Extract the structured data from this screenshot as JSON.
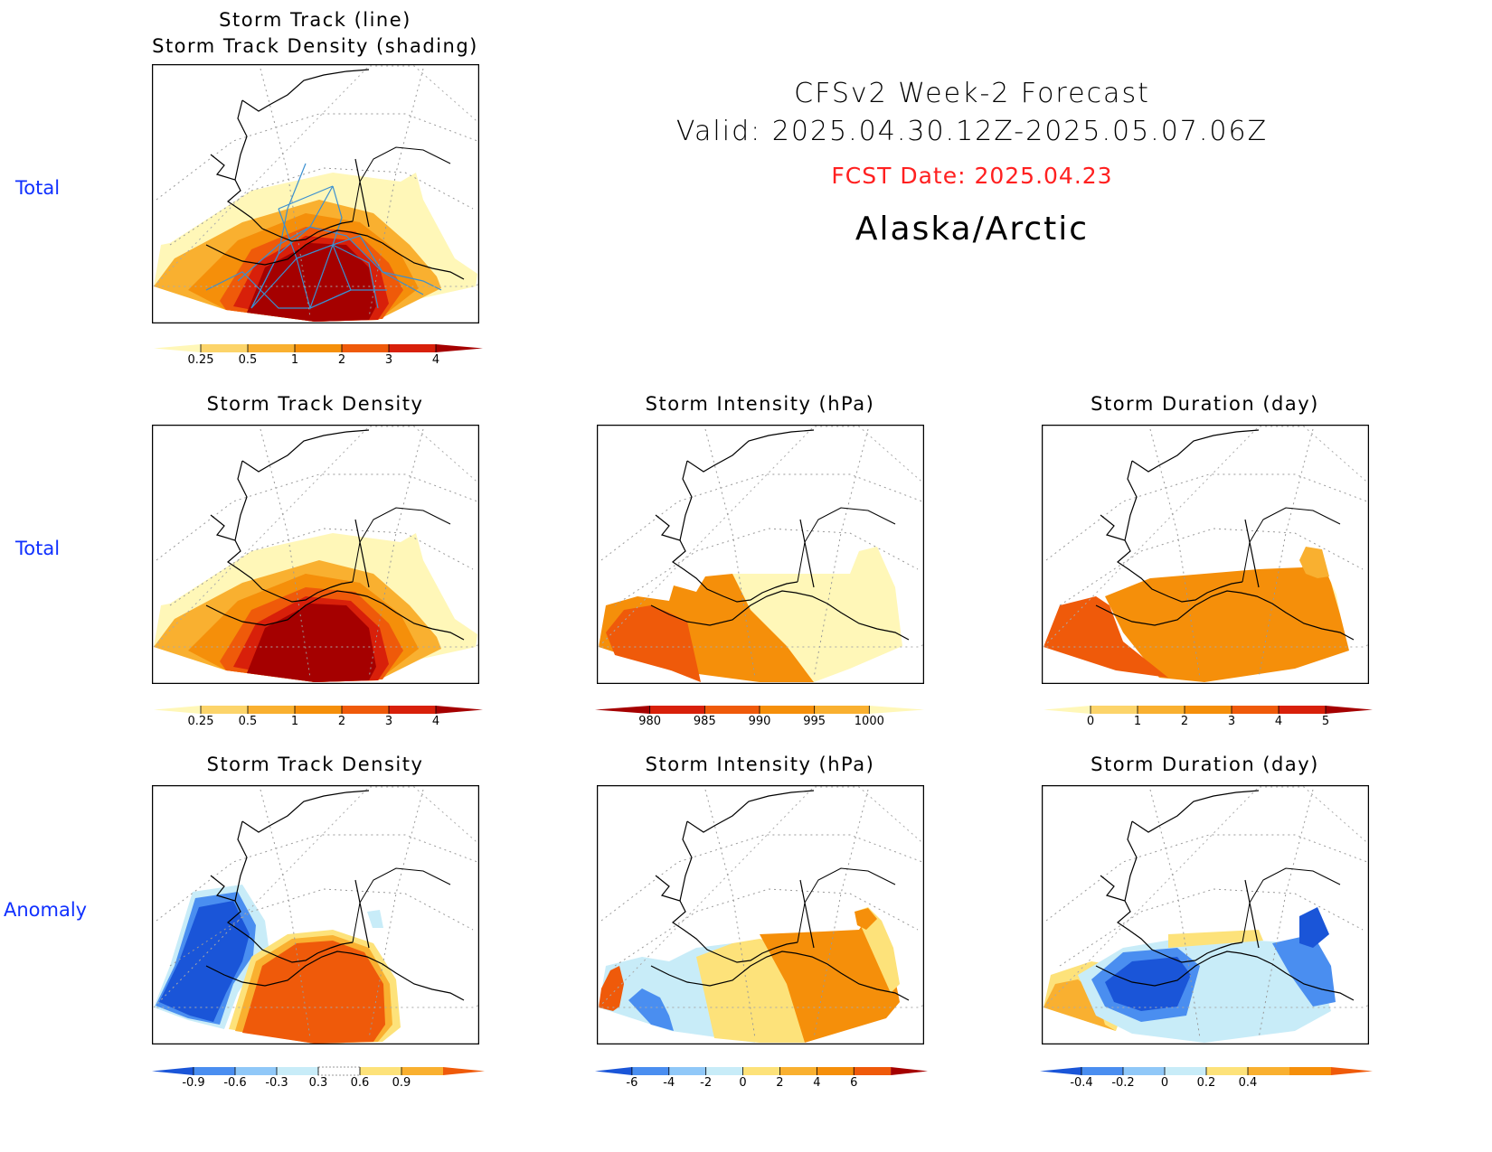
{
  "header": {
    "title": "CFSv2  Week-2  Forecast",
    "valid": "Valid:  2025.04.30.12Z-2025.05.07.06Z",
    "fcst_date": "FCST Date: 2025.04.23",
    "region": "Alaska/Arctic"
  },
  "row_labels": [
    "Total",
    "Total",
    "Anomaly"
  ],
  "panels": {
    "p1": {
      "title_line1": "Storm Track (line)",
      "title_line2": "Storm Track Density (shading)"
    },
    "p2": {
      "title": "Storm Track Density"
    },
    "p3": {
      "title": "Storm Intensity (hPa)"
    },
    "p4": {
      "title": "Storm Duration (day)"
    },
    "p5": {
      "title": "Storm Track Density"
    },
    "p6": {
      "title": "Storm Intensity (hPa)"
    },
    "p7": {
      "title": "Storm Duration (day)"
    }
  },
  "colorbars": {
    "density": {
      "labels": [
        "0.25",
        "0.5",
        "1",
        "2",
        "3",
        "4"
      ],
      "colors": [
        "#fff7b8",
        "#fcd46a",
        "#f9b030",
        "#f58f0a",
        "#ef5a0a",
        "#d8200a",
        "#a50000"
      ]
    },
    "intensity": {
      "labels": [
        "980",
        "985",
        "990",
        "995",
        "1000"
      ],
      "colors": [
        "#a50000",
        "#d8200a",
        "#ef5a0a",
        "#f58f0a",
        "#f9b030",
        "#fff7b8"
      ]
    },
    "duration": {
      "labels": [
        "0",
        "1",
        "2",
        "3",
        "4",
        "5"
      ],
      "colors": [
        "#fff7b8",
        "#fcd46a",
        "#f9b030",
        "#f58f0a",
        "#ef5a0a",
        "#d8200a",
        "#a50000"
      ]
    },
    "density_anom": {
      "labels": [
        "-0.9",
        "-0.6",
        "-0.3",
        "0.3",
        "0.6",
        "0.9"
      ],
      "colors": [
        "#1a55d8",
        "#4a8ef0",
        "#90c8f8",
        "#c8ecf8",
        "#ffffff",
        "#fde27a",
        "#f9b030",
        "#ef5a0a"
      ]
    },
    "intensity_anom": {
      "labels": [
        "-6",
        "-4",
        "-2",
        "0",
        "2",
        "4",
        "6"
      ],
      "colors": [
        "#1a55d8",
        "#4a8ef0",
        "#90c8f8",
        "#c8ecf8",
        "#fde27a",
        "#f9b030",
        "#f58f0a",
        "#ef5a0a",
        "#a50000"
      ]
    },
    "duration_anom": {
      "labels": [
        "-0.4",
        "-0.2",
        "0",
        "0.2",
        "0.4"
      ],
      "colors": [
        "#1a55d8",
        "#4a8ef0",
        "#90c8f8",
        "#c8ecf8",
        "#fde27a",
        "#f9b030",
        "#f58f0a",
        "#ef5a0a"
      ]
    }
  }
}
